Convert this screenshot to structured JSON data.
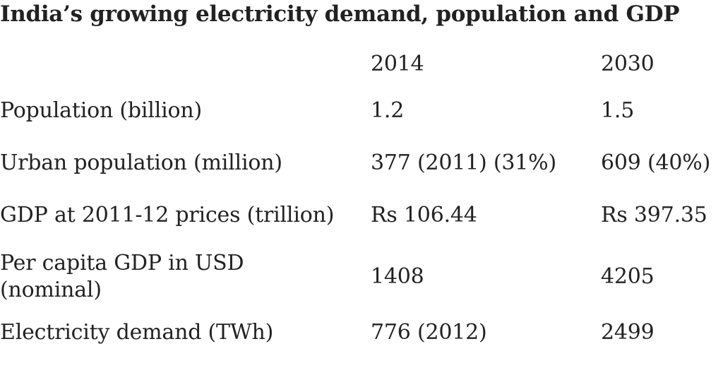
{
  "title": "India’s growing electricity demand, population and GDP",
  "table": {
    "headers": [
      "",
      "2014",
      "2030"
    ],
    "rows": [
      {
        "label": "Population (billion)",
        "v2014": "1.2",
        "v2030": "1.5"
      },
      {
        "label": "Urban population (million)",
        "v2014": "377 (2011) (31%)",
        "v2030": "609 (40%)"
      },
      {
        "label": "GDP at 2011-12 prices (trillion)",
        "v2014": "Rs 106.44",
        "v2030": "Rs 397.35"
      },
      {
        "label": "Per capita GDP in USD (nominal)",
        "v2014": "1408",
        "v2030": "4205"
      },
      {
        "label": "Electricity demand (TWh)",
        "v2014": "776 (2012)",
        "v2030": "2499"
      }
    ]
  }
}
